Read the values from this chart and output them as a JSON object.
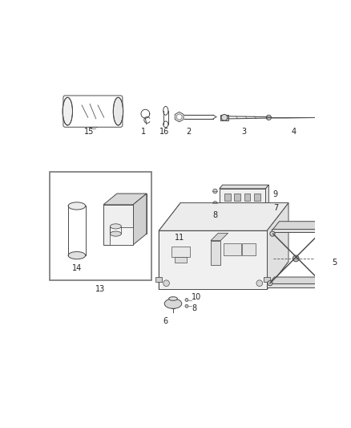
{
  "bg_color": "#ffffff",
  "line_color": "#4a4a4a",
  "label_color": "#222222",
  "fig_width": 4.38,
  "fig_height": 5.33,
  "dpi": 100,
  "label_fs": 7.0
}
